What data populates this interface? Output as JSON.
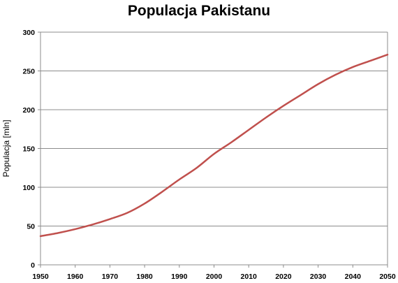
{
  "title": "Populacja Pakistanu",
  "chart_data": {
    "type": "line",
    "title": "Populacja Pakistanu",
    "xlabel": "",
    "ylabel": "Populacja [mln]",
    "xlim": [
      1950,
      2050
    ],
    "ylim": [
      0,
      300
    ],
    "x_ticks": [
      1950,
      1960,
      1970,
      1980,
      1990,
      2000,
      2010,
      2020,
      2030,
      2040,
      2050
    ],
    "y_ticks": [
      0,
      50,
      100,
      150,
      200,
      250,
      300
    ],
    "grid": true,
    "legend": "none",
    "series": [
      {
        "color": "#c0504d",
        "x": [
          1950,
          1955,
          1960,
          1965,
          1970,
          1975,
          1980,
          1985,
          1990,
          1995,
          2000,
          2005,
          2010,
          2015,
          2020,
          2025,
          2030,
          2035,
          2040,
          2045,
          2050
        ],
        "values": [
          37,
          41,
          46,
          52,
          59,
          67,
          79,
          94,
          110,
          125,
          143,
          158,
          174,
          190,
          205,
          219,
          233,
          245,
          255,
          263,
          271
        ]
      }
    ]
  }
}
